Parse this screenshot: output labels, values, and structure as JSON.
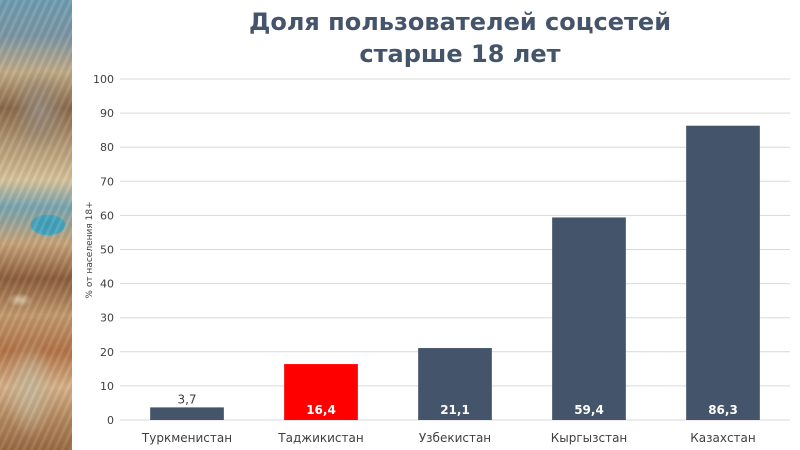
{
  "chart_data": {
    "type": "bar",
    "title_lines": [
      "Доля пользователей соцсетей",
      "старше 18 лет"
    ],
    "ylabel": "% от населения 18+",
    "xlabel": "",
    "ylim": [
      0,
      100
    ],
    "yticks": [
      0,
      10,
      20,
      30,
      40,
      50,
      60,
      70,
      80,
      90,
      100
    ],
    "grid": true,
    "categories": [
      "Туркменистан",
      "Таджикистан",
      "Узбекистан",
      "Кыргызстан",
      "Казахстан"
    ],
    "values": [
      3.7,
      16.4,
      21.1,
      59.4,
      86.3
    ],
    "value_labels": [
      "3,7",
      "16,4",
      "21,1",
      "59,4",
      "86,3"
    ],
    "bar_colors": [
      "#44546a",
      "#ff0000",
      "#44546a",
      "#44546a",
      "#44546a"
    ],
    "label_position": [
      "outside",
      "inside",
      "inside",
      "inside",
      "inside"
    ]
  },
  "colors": {
    "grid": "#d9d9d9",
    "axis_text": "#404040",
    "inside_label": "#ffffff",
    "outside_label": "#404040"
  }
}
